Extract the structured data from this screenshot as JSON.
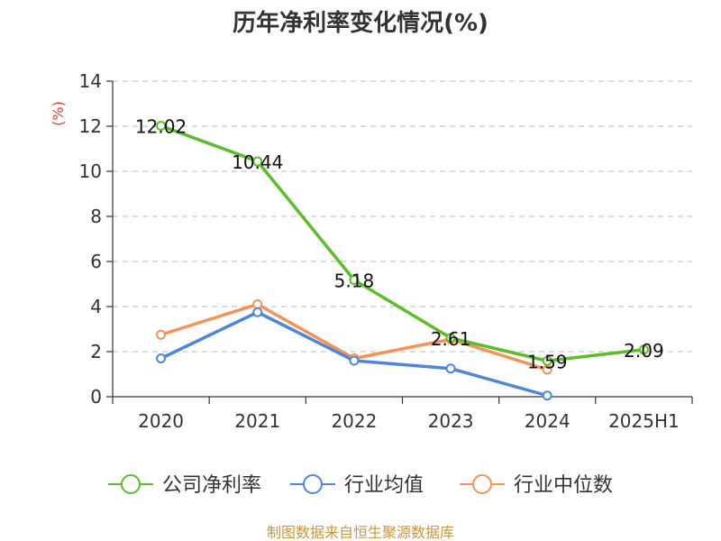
{
  "chart_data": {
    "type": "line",
    "title": "历年净利率变化情况(%)",
    "ylabel": "(%)",
    "categories": [
      "2020",
      "2021",
      "2022",
      "2023",
      "2024",
      "2025H1"
    ],
    "ylim": [
      0,
      14
    ],
    "yticks": [
      0,
      2,
      4,
      6,
      8,
      10,
      12,
      14
    ],
    "grid": "horizontal-dashed",
    "legend_position": "bottom",
    "series": [
      {
        "name": "公司净利率",
        "color": "#5cbd2b",
        "values": [
          12.02,
          10.44,
          5.18,
          2.61,
          1.59,
          2.09
        ],
        "labels": [
          "12.02",
          "10.44",
          "5.18",
          "2.61",
          "1.59",
          "2.09"
        ]
      },
      {
        "name": "行业均值",
        "color": "#4f86d9",
        "values": [
          1.7,
          3.75,
          1.6,
          1.25,
          0.05,
          null
        ]
      },
      {
        "name": "行业中位数",
        "color": "#f4925a",
        "values": [
          2.75,
          4.1,
          1.7,
          2.55,
          1.2,
          null
        ]
      }
    ]
  },
  "source_text": "制图数据来自恒生聚源数据库"
}
